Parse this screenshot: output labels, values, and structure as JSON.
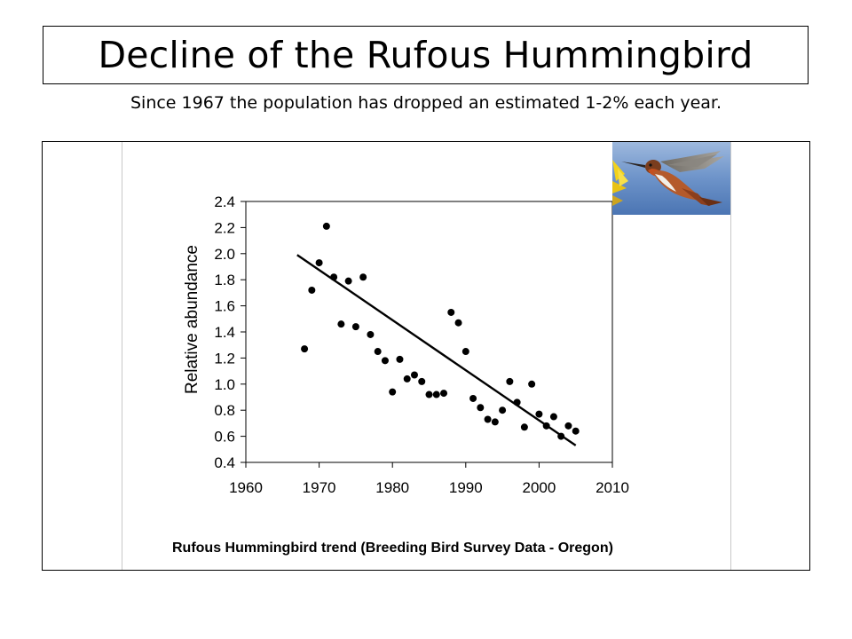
{
  "slide": {
    "title": "Decline of the Rufous Hummingbird",
    "subtitle": "Since 1967 the population has dropped an estimated 1-2% each year."
  },
  "chart_data": {
    "type": "scatter",
    "title": "Rufous Hummingbird trend (Breeding Bird Survey Data - Oregon)",
    "xlabel": "",
    "ylabel": "Relative abundance",
    "xlim": [
      1960,
      2010
    ],
    "ylim": [
      0.4,
      2.4
    ],
    "xticks": [
      "1960",
      "1970",
      "1980",
      "1990",
      "2000",
      "2010"
    ],
    "yticks": [
      "0.4",
      "0.6",
      "0.8",
      "1.0",
      "1.2",
      "1.4",
      "1.6",
      "1.8",
      "2.0",
      "2.2",
      "2.4"
    ],
    "grid": false,
    "series": [
      {
        "x": [
          1968,
          1969,
          1970,
          1971,
          1972,
          1973,
          1974,
          1975,
          1976,
          1977,
          1978,
          1979,
          1980,
          1981,
          1982,
          1983,
          1984,
          1985,
          1986,
          1987,
          1988,
          1989,
          1990,
          1991,
          1992,
          1993,
          1994,
          1995,
          1996,
          1997,
          1998,
          1999,
          2000,
          2001,
          2002,
          2003,
          2004,
          2005
        ],
        "y": [
          1.27,
          1.72,
          1.93,
          2.21,
          1.82,
          1.46,
          1.79,
          1.44,
          1.82,
          1.38,
          1.25,
          1.18,
          0.94,
          1.19,
          1.04,
          1.07,
          1.02,
          0.92,
          0.92,
          0.93,
          1.55,
          1.47,
          1.25,
          0.89,
          0.82,
          0.73,
          0.71,
          0.8,
          1.02,
          0.86,
          0.67,
          1.0,
          0.77,
          0.68,
          0.75,
          0.6,
          0.68,
          0.64
        ]
      }
    ],
    "trendline": {
      "x": [
        1967,
        2005
      ],
      "y": [
        1.99,
        0.53
      ]
    }
  },
  "colors": {
    "points": "#000000",
    "trendline": "#000000",
    "photo_sky": "#5e8ac4"
  }
}
